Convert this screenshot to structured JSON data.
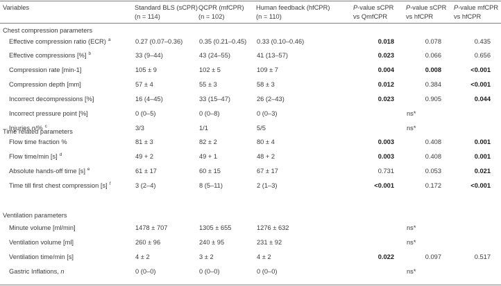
{
  "header": {
    "col_variables": "Variables",
    "col_sbls": {
      "line1": "Standard BLS (sCPR)",
      "n_prefix": "(n",
      "n_suffix": " = 114)"
    },
    "col_qcpr": {
      "line1": "QCPR (mfCPR)",
      "n_prefix": "(n",
      "n_suffix": " = 102)"
    },
    "col_hfcpr": {
      "line1": "Human feedback (hfCPR)",
      "n_prefix": "(n",
      "n_suffix": " = 110)"
    },
    "col_p1": {
      "p": "P",
      "rest": "-value sCPR",
      "line2": "vs QmfCPR"
    },
    "col_p2": {
      "p": "P",
      "rest": "-value sCPR",
      "line2": "vs hfCPR"
    },
    "col_p3": {
      "p": "P",
      "rest": "-value mfCPR",
      "line2": "vs hfCPR"
    }
  },
  "sections": {
    "chest": "Chest compression parameters",
    "time": "Time related parameters",
    "ventilation": "Ventilation parameters"
  },
  "rows": [
    {
      "label": "Effective compression ratio (ECR)",
      "sup": "a",
      "sbls": "0.27 (0.07–0.36)",
      "qcpr": "0.35 (0.21–0.45)",
      "hf": "0.33 (0.10–0.46)",
      "p1": "0.018",
      "p2": "0.078",
      "p3": "0.435"
    },
    {
      "label": "Effective compressions [%]",
      "sup": "b",
      "sbls": "33 (9–44)",
      "qcpr": "43 (24–55)",
      "hf": "41 (13–57)",
      "p1": "0.023",
      "p2": "0.066",
      "p3": "0.656"
    },
    {
      "label": "Compression rate [min-1]",
      "sup": "",
      "sbls": "105 ± 9",
      "qcpr": "102 ± 5",
      "hf": "109 ± 7",
      "p1": "0.004",
      "p2": "0.008",
      "p3": "<0.001"
    },
    {
      "label": "Compression depth [mm]",
      "sup": "",
      "sbls": "57 ± 4",
      "qcpr": "55 ± 3",
      "hf": "58 ± 3",
      "p1": "0.012",
      "p2": "0.384",
      "p3": "<0.001"
    },
    {
      "label": "Incorrect decompressions [%]",
      "sup": "",
      "sbls": "16 (4–45)",
      "qcpr": "33 (15–47)",
      "hf": "26 (2–43)",
      "p1": "0.023",
      "p2": "0.905",
      "p3": "0.044"
    },
    {
      "label": "Incorrect pressure point [%]",
      "sup": "",
      "sbls": "0 (0–5)",
      "qcpr": "0 (0–8)",
      "hf": "0 (0–3)",
      "p1": "",
      "p2": "ns*",
      "p3": ""
    },
    {
      "label_pre": "Injuries ",
      "label_it": "n",
      "label_post": "/%",
      "sup": "c",
      "sbls": "3/3",
      "qcpr": "1/1",
      "hf": "5/5",
      "p1": "",
      "p2": "ns*",
      "p3": ""
    },
    {
      "label": "Flow time fraction %",
      "sup": "",
      "sbls": "81 ± 3",
      "qcpr": "82 ± 2",
      "hf": "80 ± 4",
      "p1": "0.003",
      "p2": "0.408",
      "p3": "0.001"
    },
    {
      "label": "Flow time/min [s]",
      "sup": "d",
      "sbls": "49 + 2",
      "qcpr": "49 + 1",
      "hf": "48 + 2",
      "p1": "0.003",
      "p2": "0.408",
      "p3": "0.001"
    },
    {
      "label": "Absolute hands-off time [s]",
      "sup": "e",
      "sbls": "61 ± 17",
      "qcpr": "60 ± 15",
      "hf": "67 ± 17",
      "p1": "0.731",
      "p2": "0.053",
      "p3": "0.021"
    },
    {
      "label": "Time till first chest compression [s]",
      "sup": "f",
      "sbls": "3 (2–4)",
      "qcpr": "8 (5–11)",
      "hf": "2 (1–3)",
      "p1": "<0.001",
      "p2": "0.172",
      "p3": "<0.001"
    },
    {
      "label": "Minute volume [ml/min]",
      "sup": "",
      "sbls": "1478 ± 707",
      "qcpr": "1305 ± 655",
      "hf": "1276 ± 632",
      "p1": "",
      "p2": "ns*",
      "p3": ""
    },
    {
      "label": "Ventilation volume [ml]",
      "sup": "",
      "sbls": "260 ± 96",
      "qcpr": "240 ± 95",
      "hf": "231 ± 92",
      "p1": "",
      "p2": "ns*",
      "p3": ""
    },
    {
      "label": "Ventilation time/min [s]",
      "sup": "",
      "sbls": "4 ± 2",
      "qcpr": "3 ± 2",
      "hf": "4 ± 2",
      "p1": "0.022",
      "p2": "0.097",
      "p3": "0.517"
    },
    {
      "label_pre": "Gastric Inflations, ",
      "label_it": "n",
      "label_post": "",
      "sup": "",
      "sbls": "0 (0–0)",
      "qcpr": "0 (0–0)",
      "hf": "0 (0–0)",
      "p1": "",
      "p2": "ns*",
      "p3": ""
    }
  ]
}
